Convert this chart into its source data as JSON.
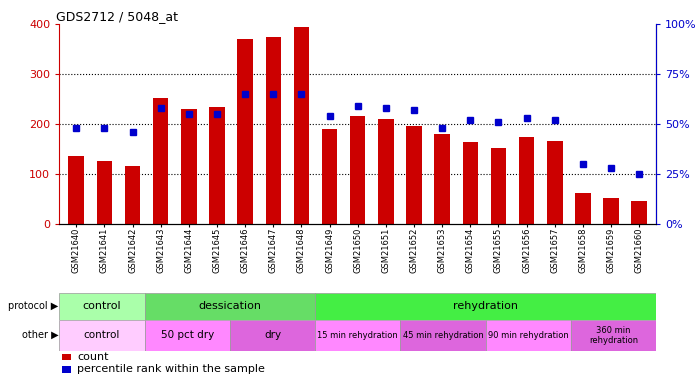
{
  "title": "GDS2712 / 5048_at",
  "samples": [
    "GSM21640",
    "GSM21641",
    "GSM21642",
    "GSM21643",
    "GSM21644",
    "GSM21645",
    "GSM21646",
    "GSM21647",
    "GSM21648",
    "GSM21649",
    "GSM21650",
    "GSM21651",
    "GSM21652",
    "GSM21653",
    "GSM21654",
    "GSM21655",
    "GSM21656",
    "GSM21657",
    "GSM21658",
    "GSM21659",
    "GSM21660"
  ],
  "counts": [
    135,
    125,
    115,
    252,
    230,
    235,
    370,
    375,
    395,
    190,
    215,
    210,
    195,
    180,
    163,
    152,
    173,
    165,
    62,
    52,
    45
  ],
  "percentile_ranks": [
    48,
    48,
    46,
    58,
    55,
    55,
    65,
    65,
    65,
    54,
    59,
    58,
    57,
    48,
    52,
    51,
    53,
    52,
    30,
    28,
    25
  ],
  "bar_color": "#cc0000",
  "dot_color": "#0000cc",
  "ylim_left": [
    0,
    400
  ],
  "ylim_right": [
    0,
    100
  ],
  "yticks_left": [
    0,
    100,
    200,
    300,
    400
  ],
  "yticks_right": [
    0,
    25,
    50,
    75,
    100
  ],
  "bg_color": "#ffffff",
  "proto_def": [
    [
      "control",
      0,
      3,
      "#aaffaa"
    ],
    [
      "dessication",
      3,
      9,
      "#66dd66"
    ],
    [
      "rehydration",
      9,
      21,
      "#44ee44"
    ]
  ],
  "other_def": [
    [
      "control",
      0,
      3,
      "#ffccff"
    ],
    [
      "50 pct dry",
      3,
      6,
      "#ff88ff"
    ],
    [
      "dry",
      6,
      9,
      "#dd66dd"
    ],
    [
      "15 min rehydration",
      9,
      12,
      "#ff88ff"
    ],
    [
      "45 min rehydration",
      12,
      15,
      "#dd66dd"
    ],
    [
      "90 min rehydration",
      15,
      18,
      "#ff88ff"
    ],
    [
      "360 min\nrehydration",
      18,
      21,
      "#dd66dd"
    ]
  ]
}
